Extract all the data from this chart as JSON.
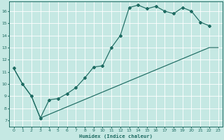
{
  "xlabel": "Humidex (Indice chaleur)",
  "bg_color": "#c5e8e3",
  "line_color": "#1e6b62",
  "grid_color": "#ffffff",
  "xlim": [
    -0.5,
    23.5
  ],
  "ylim": [
    6.5,
    16.8
  ],
  "yticks": [
    7,
    8,
    9,
    10,
    11,
    12,
    13,
    14,
    15,
    16
  ],
  "xticks": [
    0,
    1,
    2,
    3,
    4,
    5,
    6,
    7,
    8,
    9,
    10,
    11,
    12,
    13,
    14,
    15,
    16,
    17,
    18,
    19,
    20,
    21,
    22,
    23
  ],
  "curve1_x": [
    0,
    1,
    2,
    3,
    4,
    5,
    6,
    7,
    8,
    9,
    10,
    11,
    12,
    13,
    14,
    15,
    16,
    17,
    18,
    19,
    20,
    21,
    22
  ],
  "curve1_y": [
    11.3,
    10.0,
    9.0,
    7.2,
    8.7,
    8.8,
    9.2,
    9.7,
    10.5,
    11.4,
    11.5,
    13.0,
    14.0,
    16.3,
    16.5,
    16.2,
    16.4,
    16.0,
    15.8,
    16.3,
    16.0,
    15.1,
    14.8
  ],
  "curve2_x": [
    0,
    1,
    2,
    3,
    22,
    23
  ],
  "curve2_y": [
    11.3,
    10.0,
    9.0,
    7.2,
    13.0,
    13.0
  ]
}
